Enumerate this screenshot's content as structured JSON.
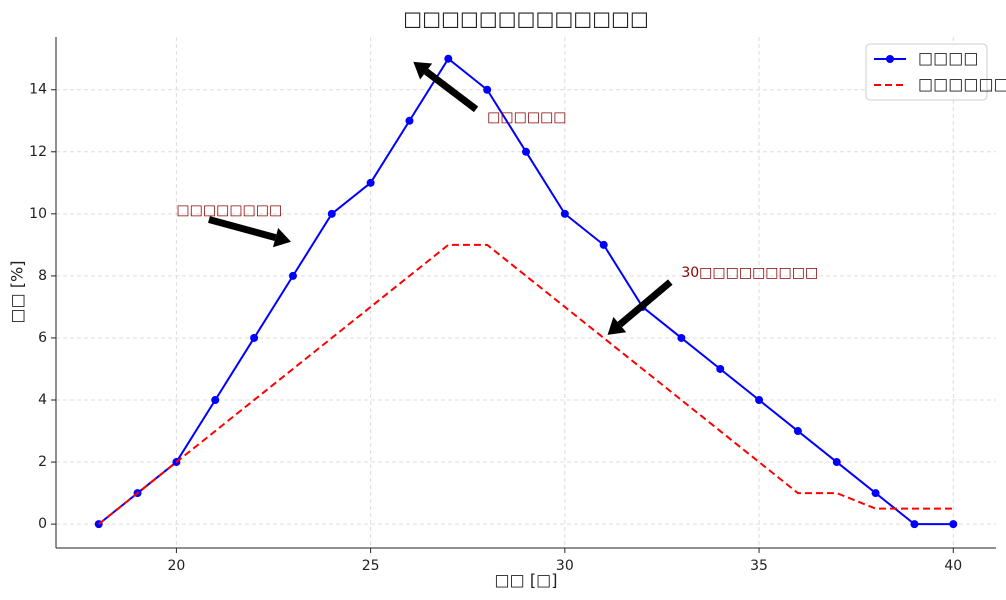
{
  "chart_data": {
    "type": "line",
    "title": "□□□□□□□□□□□□□",
    "xlabel": "□□ [□]",
    "ylabel": "□□ [%]",
    "x": [
      18,
      19,
      20,
      21,
      22,
      23,
      24,
      25,
      26,
      27,
      28,
      29,
      30,
      31,
      32,
      33,
      34,
      35,
      36,
      37,
      38,
      39,
      40
    ],
    "series": [
      {
        "name": "□□□□",
        "color": "#0000ff",
        "style": "solid",
        "markers": true,
        "values": [
          0,
          1,
          2,
          4,
          6,
          8,
          10,
          11,
          13,
          15,
          14,
          12,
          10,
          9,
          7,
          6,
          5,
          4,
          3,
          2,
          1,
          0,
          0
        ]
      },
      {
        "name": "□□□□□□",
        "color": "#ff0000",
        "style": "dashed",
        "markers": false,
        "values": [
          0,
          1,
          2,
          3,
          4,
          5,
          6,
          7,
          8,
          9,
          9,
          8,
          7,
          6,
          5,
          4,
          3,
          2,
          1,
          1,
          0.5,
          0.5,
          0.5
        ]
      }
    ],
    "xlim": [
      16.9,
      41.1
    ],
    "ylim": [
      -0.77,
      15.7
    ],
    "xticks": [
      20,
      25,
      30,
      35,
      40
    ],
    "yticks": [
      0,
      2,
      4,
      6,
      8,
      10,
      12,
      14
    ],
    "grid": true,
    "legend": "upper right",
    "annotations": [
      {
        "text": "□□□□□□",
        "x": 26.1,
        "y": 14.9,
        "text_x": 28,
        "text_y": 13.1
      },
      {
        "text": "□□□□□□□□",
        "x": 22.95,
        "y": 9.1,
        "text_x": 20,
        "text_y": 10.1
      },
      {
        "text": "30□□□□□□□□□",
        "x": 31.1,
        "y": 6.1,
        "text_x": 33,
        "text_y": 8.1
      }
    ]
  }
}
